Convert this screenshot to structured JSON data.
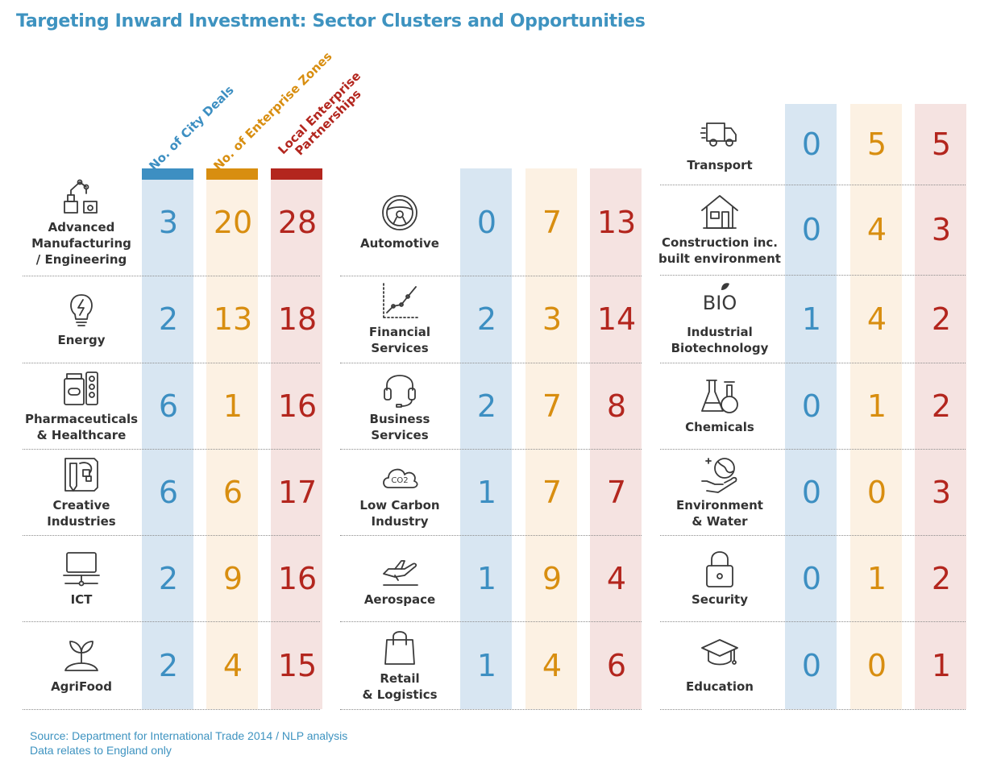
{
  "title": "Targeting Inward Investment: Sector Clusters and Opportunities",
  "chart_data": {
    "type": "table",
    "columns": [
      {
        "label": "No. of City Deals",
        "color": "#3d8fc2",
        "band": "#d8e6f2"
      },
      {
        "label": "No. of Enterprise Zones",
        "color": "#d88e10",
        "band": "#fcf1e3"
      },
      {
        "label": "Local Enterprise\nPartnerships",
        "color": "#b3261e",
        "band": "#f5e3e1"
      }
    ],
    "groups": [
      {
        "rows": [
          {
            "sector": "Advanced\nManufacturing\n/ Engineering",
            "icon": "robot-arm-icon",
            "values": [
              3,
              20,
              28
            ]
          },
          {
            "sector": "Energy",
            "icon": "lightbulb-icon",
            "values": [
              2,
              13,
              18
            ]
          },
          {
            "sector": "Pharmaceuticals\n& Healthcare",
            "icon": "pills-icon",
            "values": [
              6,
              1,
              16
            ]
          },
          {
            "sector": "Creative\nIndustries",
            "icon": "design-board-icon",
            "values": [
              6,
              6,
              17
            ]
          },
          {
            "sector": "ICT",
            "icon": "laptop-network-icon",
            "values": [
              2,
              9,
              16
            ]
          },
          {
            "sector": "AgriFood",
            "icon": "sprout-icon",
            "values": [
              2,
              4,
              15
            ]
          }
        ]
      },
      {
        "rows": [
          {
            "sector": "Automotive",
            "icon": "steering-wheel-icon",
            "values": [
              0,
              7,
              13
            ]
          },
          {
            "sector": "Financial\nServices",
            "icon": "line-graph-icon",
            "values": [
              2,
              3,
              14
            ]
          },
          {
            "sector": "Business\nServices",
            "icon": "headset-icon",
            "values": [
              2,
              7,
              8
            ]
          },
          {
            "sector": "Low Carbon\nIndustry",
            "icon": "co2-cloud-icon",
            "icon_text": "CO2",
            "values": [
              1,
              7,
              7
            ]
          },
          {
            "sector": "Aerospace",
            "icon": "airplane-icon",
            "values": [
              1,
              9,
              4
            ]
          },
          {
            "sector": "Retail\n& Logistics",
            "icon": "shopping-bag-icon",
            "values": [
              1,
              4,
              6
            ]
          }
        ]
      },
      {
        "rows": [
          {
            "sector": "Transport",
            "icon": "truck-icon",
            "values": [
              0,
              5,
              5
            ]
          },
          {
            "sector": "Construction inc.\nbuilt environment",
            "icon": "house-icon",
            "values": [
              0,
              4,
              3
            ]
          },
          {
            "sector": "Industrial\nBiotechnology",
            "icon": "bio-leaf-icon",
            "icon_text": "BIO",
            "values": [
              1,
              4,
              2
            ]
          },
          {
            "sector": "Chemicals",
            "icon": "flasks-icon",
            "values": [
              0,
              1,
              2
            ]
          },
          {
            "sector": "Environment\n& Water",
            "icon": "globe-hand-icon",
            "values": [
              0,
              0,
              3
            ]
          },
          {
            "sector": "Security",
            "icon": "padlock-icon",
            "values": [
              0,
              1,
              2
            ]
          },
          {
            "sector": "Education",
            "icon": "graduation-cap-icon",
            "values": [
              0,
              0,
              1
            ]
          }
        ]
      }
    ]
  },
  "source": {
    "line1": "Source: Department for International Trade 2014 / NLP analysis",
    "line2": "Data relates to England only"
  }
}
